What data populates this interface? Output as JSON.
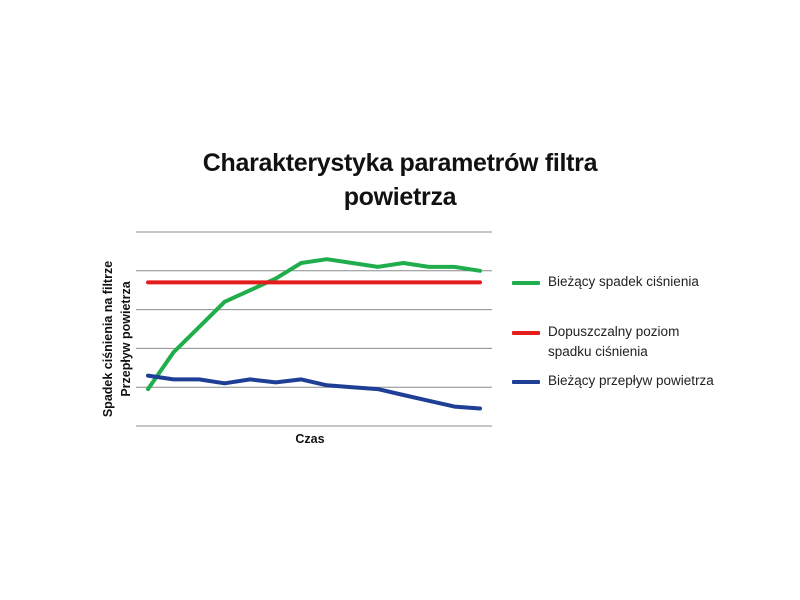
{
  "chart_data": {
    "type": "line",
    "title": [
      "Charakterystyka  parametrów filtra",
      "powietrza"
    ],
    "xlabel": "Czas",
    "ylabels": [
      "Spadek ciśnienia na filtrze",
      "Przepływ powietrza"
    ],
    "ylim": [
      0,
      100
    ],
    "grid": true,
    "legend_position": "right",
    "x": [
      0,
      1,
      2,
      3,
      4,
      5,
      6,
      7,
      8,
      9,
      10,
      11,
      12,
      13
    ],
    "series": [
      {
        "name": "Bieżący spadek ciśnienia",
        "color": "#1fae4b",
        "values": [
          19,
          38,
          51,
          64,
          70,
          76,
          84,
          86,
          84,
          82,
          84,
          82,
          82,
          80
        ]
      },
      {
        "name": "Dopuszczalny poziom spadku ciśnienia",
        "color": "#e51c1c",
        "values": [
          74,
          74,
          74,
          74,
          74,
          74,
          74,
          74,
          74,
          74,
          74,
          74,
          74,
          74
        ]
      },
      {
        "name": "Bieżący przepływ powietrza",
        "color": "#1f3f96",
        "values": [
          26,
          24,
          24,
          22,
          24,
          22.5,
          24,
          21,
          20,
          19,
          16,
          13,
          10,
          9
        ]
      }
    ]
  }
}
